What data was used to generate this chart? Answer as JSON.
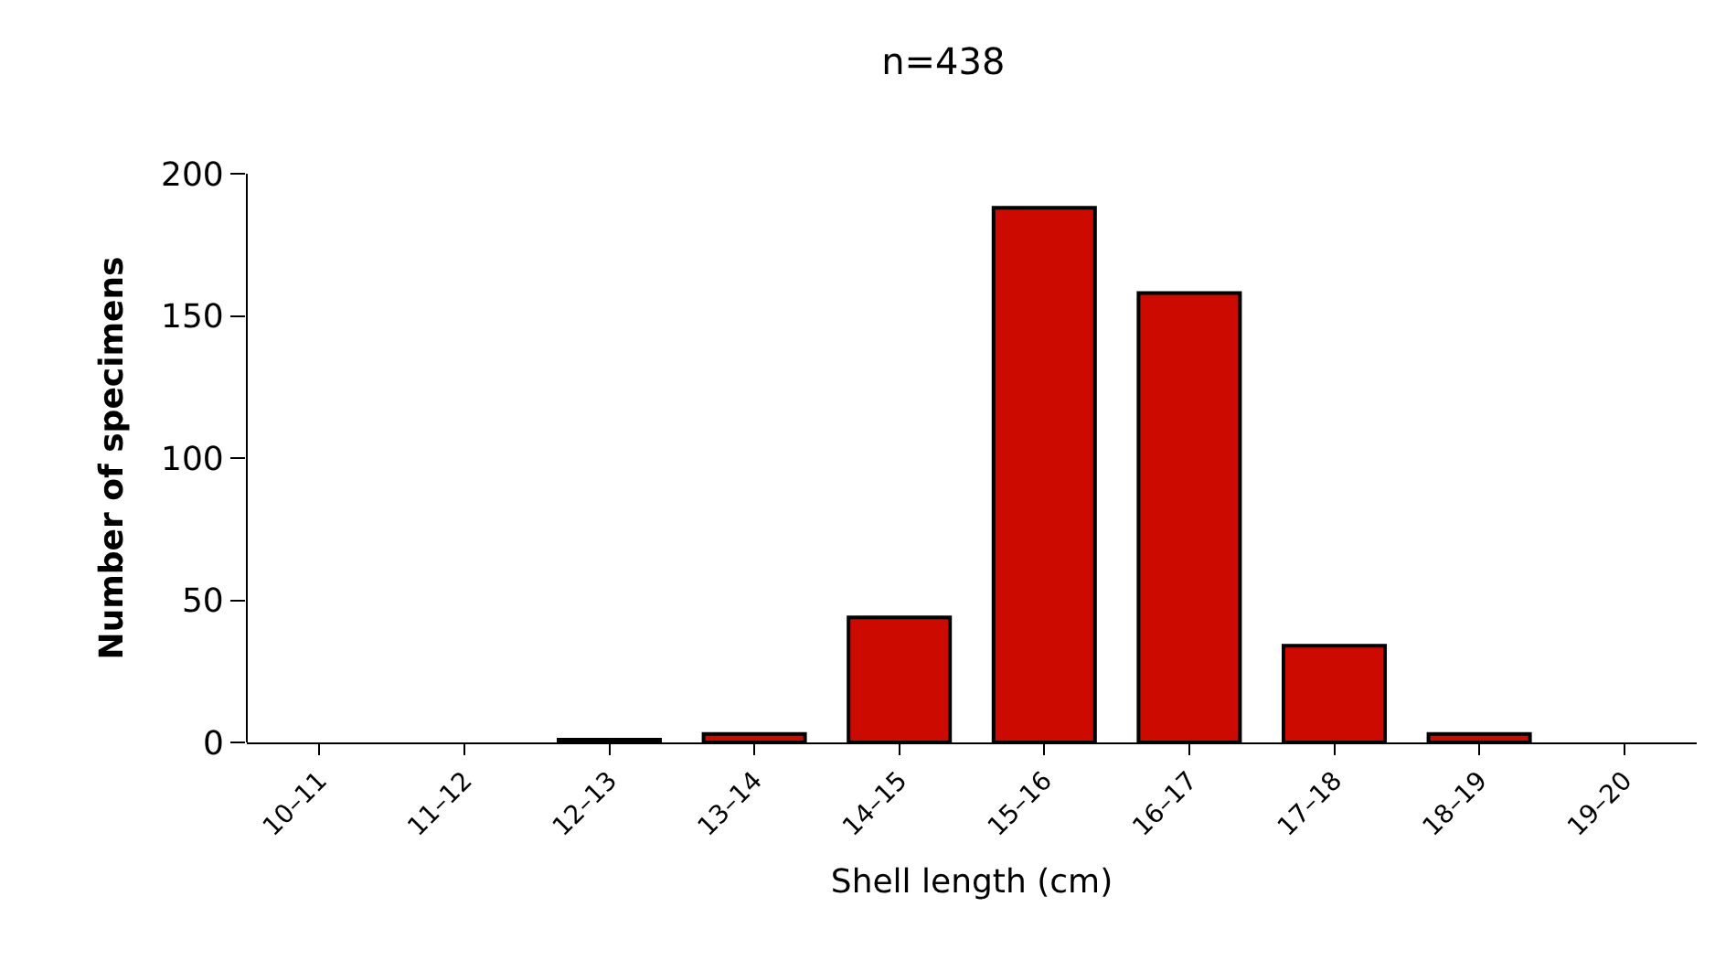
{
  "chart_data": {
    "type": "bar",
    "title": "n=438",
    "xlabel": "Shell length (cm)",
    "ylabel": "Number of specimens",
    "categories": [
      "10–11",
      "11–12",
      "12–13",
      "13–14",
      "14–15",
      "15–16",
      "16–17",
      "17–18",
      "18–19",
      "19–20"
    ],
    "values": [
      0,
      0,
      1,
      3,
      44,
      188,
      158,
      34,
      3,
      0
    ],
    "color": "#cc0a00",
    "ylim": [
      0,
      200
    ],
    "yticks": [
      0,
      50,
      100,
      150,
      200
    ],
    "legend": false
  }
}
